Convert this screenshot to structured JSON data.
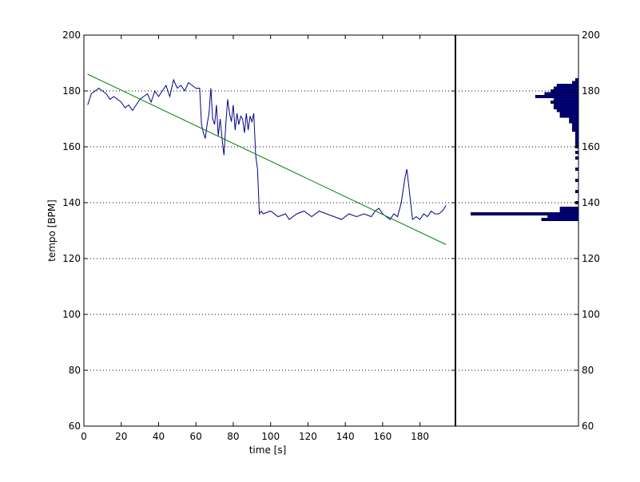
{
  "chart_data": [
    {
      "type": "line",
      "xlabel": "time [s]",
      "ylabel": "tempo [BPM]",
      "xlim": [
        0,
        199
      ],
      "ylim": [
        60,
        200
      ],
      "xticks": [
        0,
        20,
        40,
        60,
        80,
        100,
        120,
        140,
        160,
        180
      ],
      "xtick_labels": [
        "0",
        "20",
        "40",
        "60",
        "80",
        "100",
        "120",
        "140",
        "160",
        "180"
      ],
      "yticks": [
        60,
        80,
        100,
        120,
        140,
        160,
        180,
        200
      ],
      "ytick_labels": [
        "60",
        "80",
        "100",
        "120",
        "140",
        "160",
        "180",
        "200"
      ],
      "grid": "horizontal dotted",
      "series": [
        {
          "color": "#00008b",
          "x": [
            2,
            4,
            6,
            8,
            10,
            12,
            14,
            16,
            18,
            20,
            22,
            24,
            26,
            28,
            30,
            32,
            34,
            36,
            38,
            40,
            42,
            44,
            46,
            48,
            50,
            52,
            54,
            56,
            58,
            60,
            62,
            63,
            64,
            65,
            66,
            67,
            68,
            69,
            70,
            71,
            72,
            73,
            74,
            75,
            76,
            77,
            78,
            79,
            80,
            81,
            82,
            83,
            84,
            85,
            86,
            87,
            88,
            89,
            90,
            91,
            92,
            93,
            94,
            95,
            96,
            100,
            104,
            108,
            110,
            114,
            118,
            122,
            126,
            130,
            134,
            138,
            142,
            146,
            150,
            154,
            156,
            158,
            160,
            162,
            164,
            166,
            168,
            170,
            172,
            173,
            174,
            176,
            178,
            180,
            182,
            184,
            186,
            188,
            190,
            192,
            194
          ],
          "y": [
            175,
            179,
            180,
            181,
            180,
            179,
            177,
            178,
            177,
            176,
            174,
            175,
            173,
            175,
            177,
            178,
            179,
            176,
            180,
            178,
            180,
            182,
            178,
            184,
            181,
            182,
            180,
            183,
            182,
            181,
            181,
            168,
            165,
            163,
            168,
            172,
            181,
            170,
            168,
            175,
            164,
            170,
            163,
            157,
            168,
            177,
            172,
            169,
            175,
            166,
            172,
            168,
            171,
            170,
            165,
            172,
            166,
            171,
            169,
            172,
            157,
            152,
            136,
            137,
            136,
            137,
            135,
            136,
            134,
            136,
            137,
            135,
            137,
            136,
            135,
            134,
            136,
            135,
            136,
            135,
            137,
            138,
            136,
            135,
            134,
            136,
            135,
            140,
            149,
            152,
            146,
            134,
            135,
            134,
            136,
            135,
            137,
            136,
            136,
            137,
            139
          ]
        },
        {
          "color": "#008000",
          "x": [
            2,
            194
          ],
          "y": [
            186,
            125
          ]
        }
      ]
    },
    {
      "type": "bar",
      "orientation": "horizontal",
      "ylim": [
        60,
        200
      ],
      "yticks": [
        60,
        80,
        100,
        120,
        140,
        160,
        180,
        200
      ],
      "ytick_labels": [
        "60",
        "80",
        "100",
        "120",
        "140",
        "160",
        "180",
        "200"
      ],
      "color": "#000080",
      "bin_centers": [
        184,
        183,
        182,
        181,
        180,
        179,
        178,
        177,
        176,
        175,
        174,
        173,
        172,
        171,
        170,
        169,
        168,
        167,
        166,
        165,
        164,
        163,
        162,
        161,
        160,
        158,
        156,
        152,
        148,
        144,
        140,
        138,
        137,
        136,
        135,
        134
      ],
      "counts": [
        1,
        2,
        7,
        8,
        9,
        11,
        14,
        8,
        9,
        8,
        8,
        7,
        6,
        6,
        3,
        3,
        2,
        2,
        2,
        1,
        1,
        1,
        1,
        1,
        1,
        1,
        1,
        1,
        1,
        1,
        1,
        6,
        6,
        35,
        10,
        12
      ]
    }
  ]
}
